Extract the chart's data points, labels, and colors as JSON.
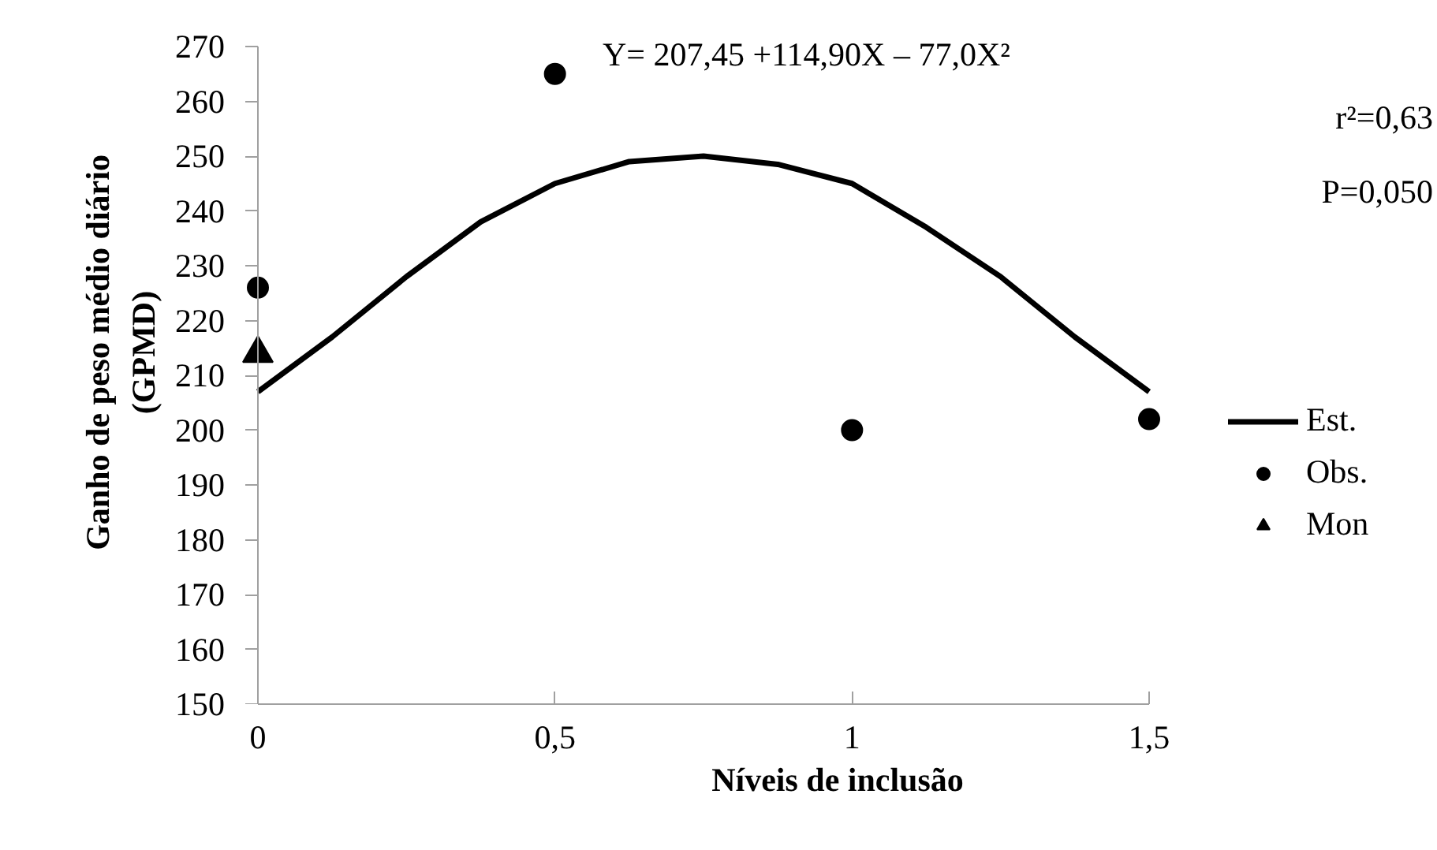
{
  "chart_data": {
    "type": "scatter",
    "xlabel": "Níveis de inclusão",
    "ylabel": "Ganho de peso médio diário\n(GPMD)",
    "xlim": [
      0,
      1.5
    ],
    "xticks": [
      0,
      {
        "value": 0.5,
        "label": "0,5"
      },
      1,
      {
        "value": 1.5,
        "label": "1,5"
      }
    ],
    "ylim": [
      150,
      270
    ],
    "yticks": [
      150,
      160,
      170,
      180,
      190,
      200,
      210,
      220,
      230,
      240,
      250,
      260,
      270
    ],
    "grid": false,
    "legend": "right",
    "series": [
      {
        "name": "Est.",
        "type": "line",
        "color": "#000000",
        "line_style": "solid",
        "x": [
          0,
          0.125,
          0.25,
          0.375,
          0.5,
          0.625,
          0.75,
          0.875,
          1,
          1.125,
          1.25,
          1.375,
          1.5
        ],
        "values": [
          207,
          217,
          228,
          238,
          245,
          249,
          250,
          248.5,
          245,
          237,
          228,
          217,
          207
        ]
      },
      {
        "name": "Obs.",
        "marker": "circle",
        "color": "#000000",
        "x": [
          0,
          0.5,
          1,
          1.5
        ],
        "values": [
          226,
          265,
          200,
          202
        ]
      },
      {
        "name": "Mon",
        "marker": "triangle",
        "color": "#000000",
        "x": [
          0
        ],
        "values": [
          214
        ]
      }
    ],
    "annotations": [
      "Y= 207,45 +114,90X – 77,0X²",
      "r²=0,63",
      "P=0,050"
    ]
  }
}
